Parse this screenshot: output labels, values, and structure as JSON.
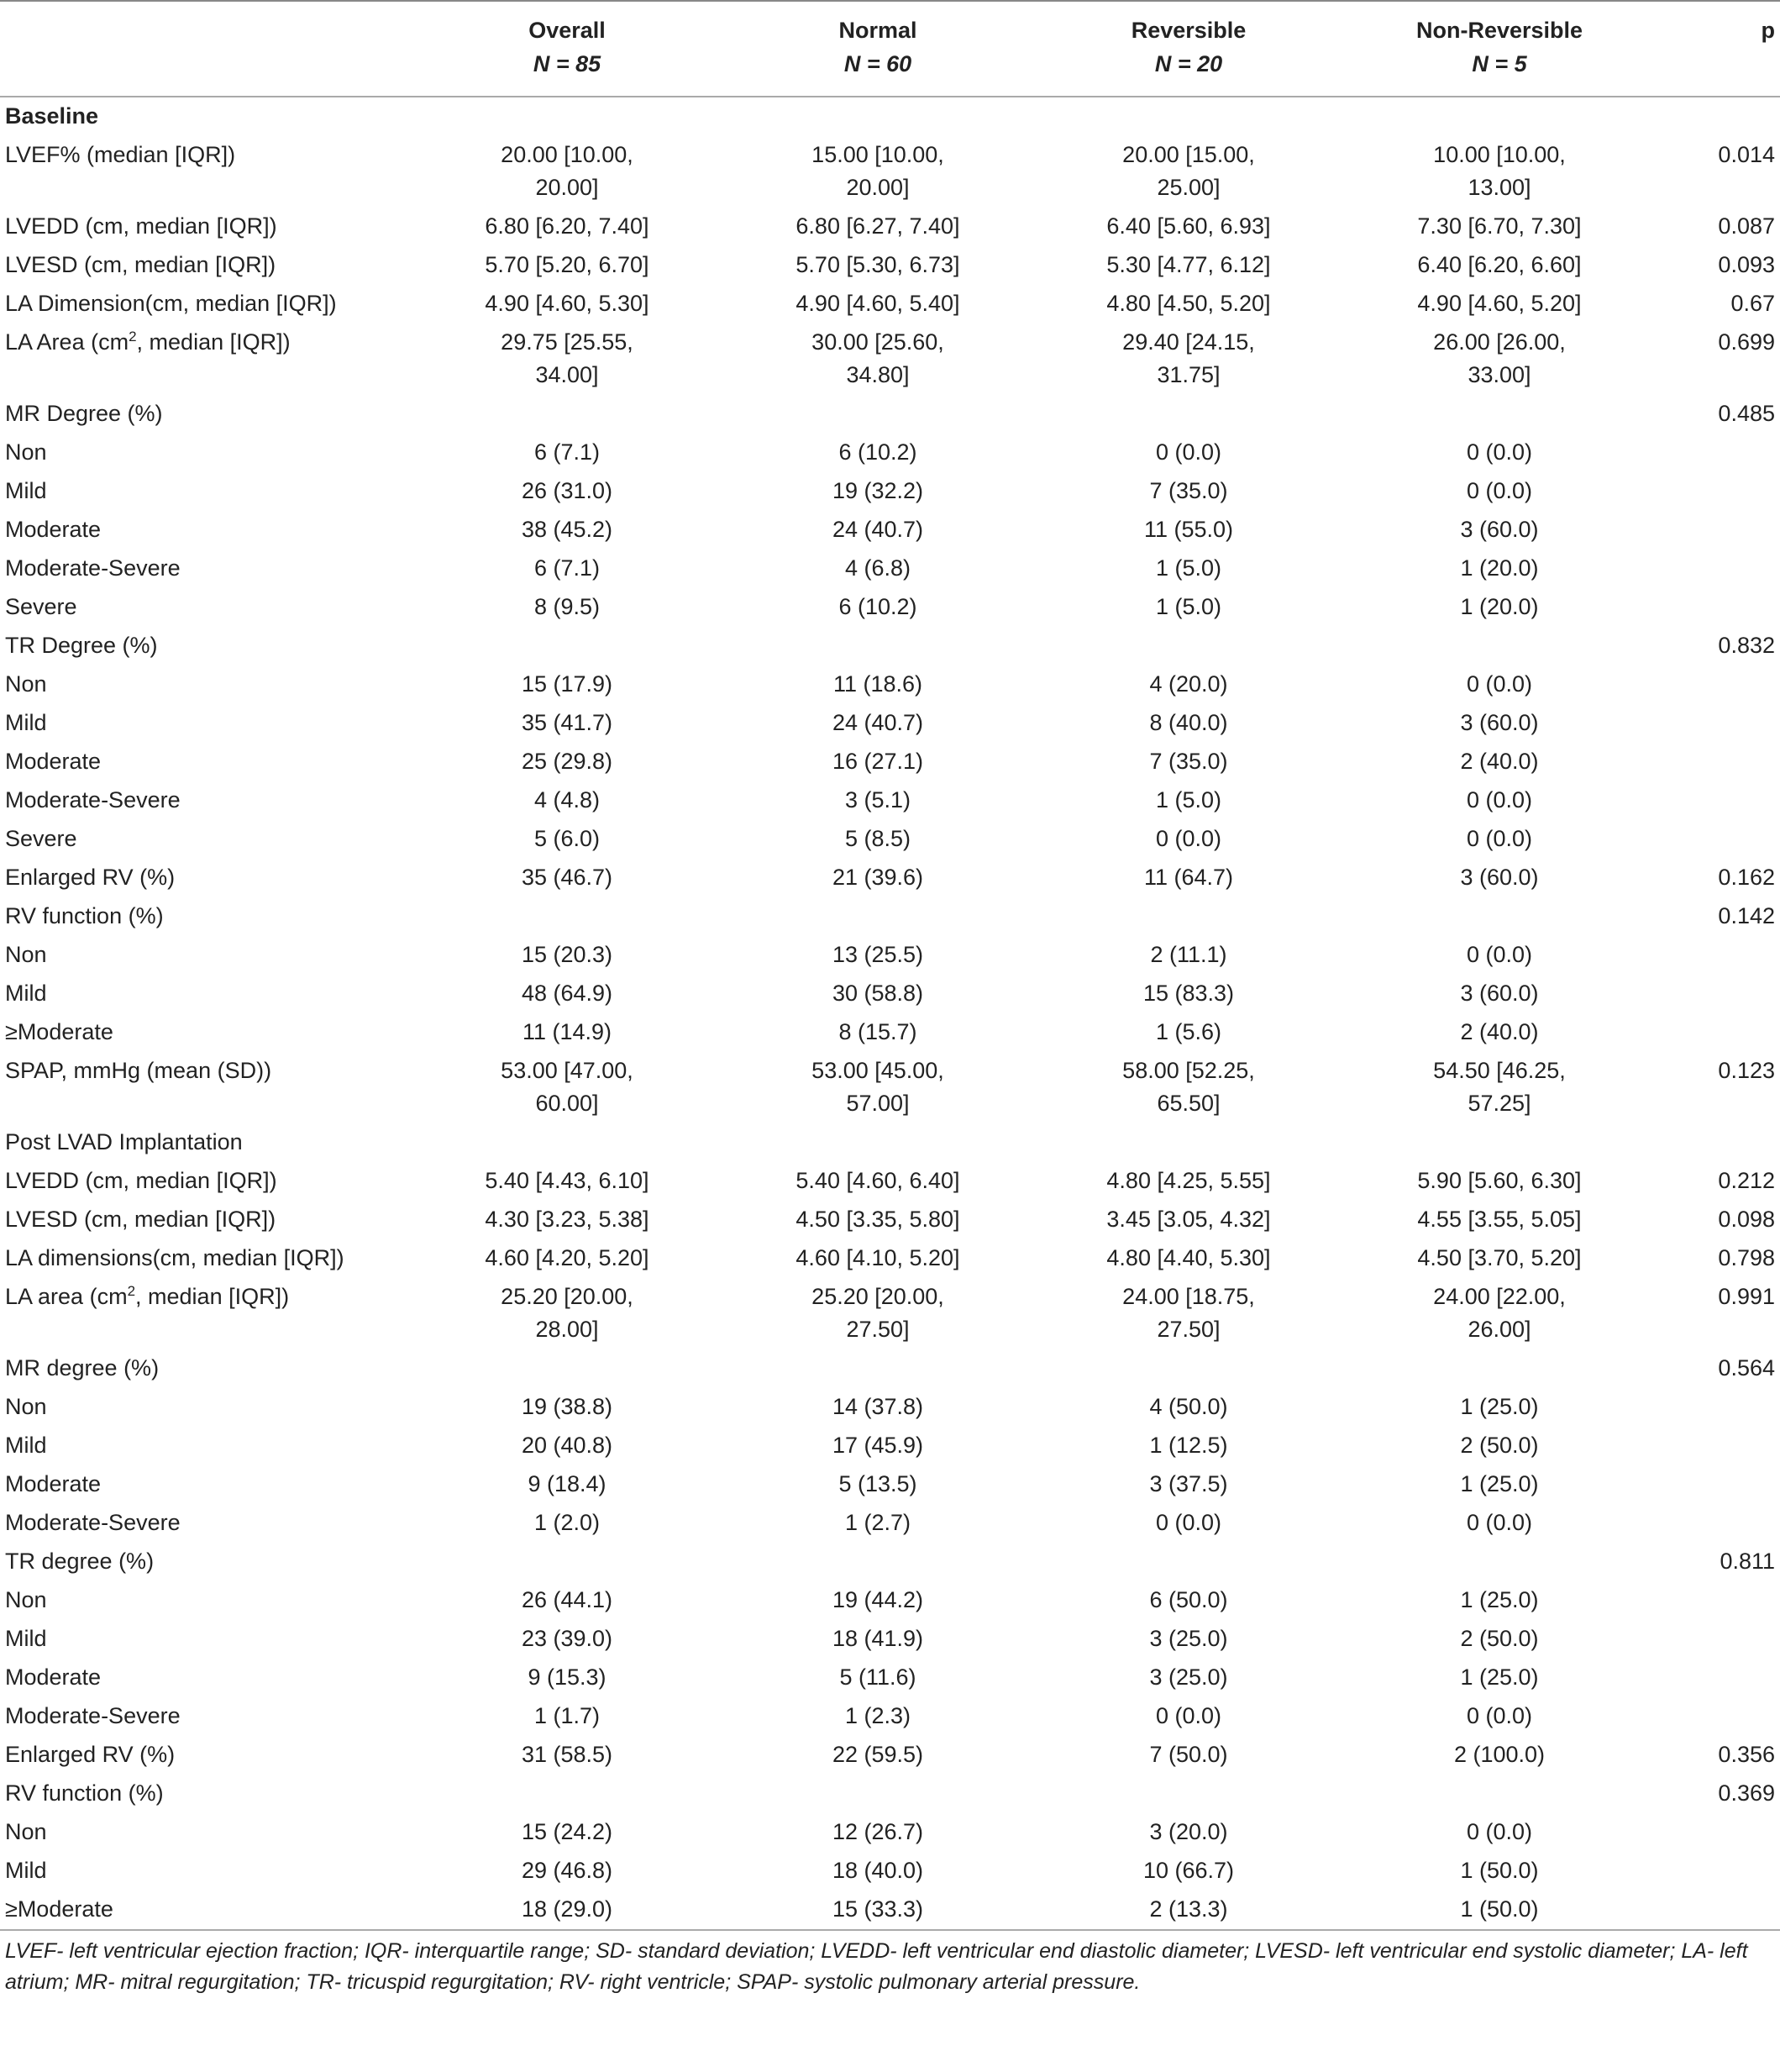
{
  "header": [
    {
      "name": "Overall",
      "n": "N = 85"
    },
    {
      "name": "Normal",
      "n": "N = 60"
    },
    {
      "name": "Reversible",
      "n": "N = 20"
    },
    {
      "name": "Non-Reversible",
      "n": "N = 5"
    }
  ],
  "p_header": "p",
  "rows": [
    {
      "label": "Baseline",
      "bold": true
    },
    {
      "label": "LVEF% (median [IQR])",
      "values": [
        "20.00 [10.00, 20.00]",
        "15.00 [10.00, 20.00]",
        "20.00 [15.00, 25.00]",
        "10.00 [10.00, 13.00]"
      ],
      "p": "0.014"
    },
    {
      "label": "LVEDD (cm, median [IQR])",
      "values": [
        "6.80 [6.20, 7.40]",
        "6.80 [6.27, 7.40]",
        "6.40 [5.60, 6.93]",
        "7.30 [6.70, 7.30]"
      ],
      "p": "0.087"
    },
    {
      "label": "LVESD (cm, median [IQR])",
      "values": [
        "5.70 [5.20, 6.70]",
        "5.70 [5.30, 6.73]",
        "5.30 [4.77, 6.12]",
        "6.40 [6.20, 6.60]"
      ],
      "p": "0.093"
    },
    {
      "label": "LA Dimension(cm, median [IQR])",
      "values": [
        "4.90 [4.60, 5.30]",
        "4.90 [4.60, 5.40]",
        "4.80 [4.50, 5.20]",
        "4.90 [4.60, 5.20]"
      ],
      "p": "0.67"
    },
    {
      "label": "LA Area (cm",
      "label_sup": "2",
      "label_after": ", median [IQR])",
      "values": [
        "29.75 [25.55, 34.00]",
        "30.00 [25.60, 34.80]",
        "29.40 [24.15, 31.75]",
        "26.00 [26.00, 33.00]"
      ],
      "p": "0.699"
    },
    {
      "label": "MR Degree (%)",
      "p": "0.485"
    },
    {
      "label": "Non",
      "values": [
        "6 (7.1)",
        "6 (10.2)",
        "0 (0.0)",
        "0 (0.0)"
      ]
    },
    {
      "label": "Mild",
      "values": [
        "26 (31.0)",
        "19 (32.2)",
        "7 (35.0)",
        "0 (0.0)"
      ]
    },
    {
      "label": "Moderate",
      "values": [
        "38 (45.2)",
        "24 (40.7)",
        "11 (55.0)",
        "3 (60.0)"
      ]
    },
    {
      "label": "Moderate-Severe",
      "values": [
        "6 (7.1)",
        "4 (6.8)",
        "1 (5.0)",
        "1 (20.0)"
      ]
    },
    {
      "label": "Severe",
      "values": [
        "8 (9.5)",
        "6 (10.2)",
        "1 (5.0)",
        "1 (20.0)"
      ]
    },
    {
      "label": "TR Degree (%)",
      "p": "0.832"
    },
    {
      "label": "Non",
      "values": [
        "15 (17.9)",
        "11 (18.6)",
        "4 (20.0)",
        "0 (0.0)"
      ]
    },
    {
      "label": "Mild",
      "values": [
        "35 (41.7)",
        "24 (40.7)",
        "8 (40.0)",
        "3 (60.0)"
      ]
    },
    {
      "label": "Moderate",
      "values": [
        "25 (29.8)",
        "16 (27.1)",
        "7 (35.0)",
        "2 (40.0)"
      ]
    },
    {
      "label": "Moderate-Severe",
      "values": [
        "4 (4.8)",
        "3 (5.1)",
        "1 (5.0)",
        "0 (0.0)"
      ]
    },
    {
      "label": "Severe",
      "values": [
        "5 (6.0)",
        "5 (8.5)",
        "0 (0.0)",
        "0 (0.0)"
      ]
    },
    {
      "label": "Enlarged RV (%)",
      "values": [
        "35 (46.7)",
        "21 (39.6)",
        "11 (64.7)",
        "3 (60.0)"
      ],
      "p": "0.162"
    },
    {
      "label": "RV function (%)",
      "p": "0.142"
    },
    {
      "label": "Non",
      "values": [
        "15 (20.3)",
        "13 (25.5)",
        "2 (11.1)",
        "0 (0.0)"
      ]
    },
    {
      "label": "Mild",
      "values": [
        "48 (64.9)",
        "30 (58.8)",
        "15 (83.3)",
        "3 (60.0)"
      ]
    },
    {
      "label": "≥Moderate",
      "values": [
        "11 (14.9)",
        "8 (15.7)",
        "1 (5.6)",
        "2 (40.0)"
      ]
    },
    {
      "label": "SPAP, mmHg (mean (SD))",
      "values": [
        "53.00 [47.00, 60.00]",
        "53.00 [45.00, 57.00]",
        "58.00 [52.25, 65.50]",
        "54.50 [46.25, 57.25]"
      ],
      "p": "0.123"
    },
    {
      "label": "Post LVAD Implantation"
    },
    {
      "label": "LVEDD (cm, median [IQR])",
      "values": [
        "5.40 [4.43, 6.10]",
        "5.40 [4.60, 6.40]",
        "4.80 [4.25, 5.55]",
        "5.90 [5.60, 6.30]"
      ],
      "p": "0.212"
    },
    {
      "label": "LVESD (cm, median [IQR])",
      "values": [
        "4.30 [3.23, 5.38]",
        "4.50 [3.35, 5.80]",
        "3.45 [3.05, 4.32]",
        "4.55 [3.55, 5.05]"
      ],
      "p": "0.098"
    },
    {
      "label": "LA dimensions(cm, median [IQR])",
      "values": [
        "4.60 [4.20, 5.20]",
        "4.60 [4.10, 5.20]",
        "4.80 [4.40, 5.30]",
        "4.50 [3.70, 5.20]"
      ],
      "p": "0.798"
    },
    {
      "label": "LA area (cm",
      "label_sup": "2",
      "label_after": ", median [IQR])",
      "values": [
        "25.20 [20.00, 28.00]",
        "25.20 [20.00, 27.50]",
        "24.00 [18.75, 27.50]",
        "24.00 [22.00, 26.00]"
      ],
      "p": "0.991"
    },
    {
      "label": "MR degree (%)",
      "p": "0.564"
    },
    {
      "label": "Non",
      "values": [
        "19 (38.8)",
        "14 (37.8)",
        "4 (50.0)",
        "1 (25.0)"
      ]
    },
    {
      "label": "Mild",
      "values": [
        "20 (40.8)",
        "17 (45.9)",
        "1 (12.5)",
        "2 (50.0)"
      ]
    },
    {
      "label": "Moderate",
      "values": [
        "9 (18.4)",
        "5 (13.5)",
        "3 (37.5)",
        "1 (25.0)"
      ]
    },
    {
      "label": "Moderate-Severe",
      "values": [
        "1 (2.0)",
        "1 (2.7)",
        "0 (0.0)",
        "0 (0.0)"
      ]
    },
    {
      "label": "TR degree (%)",
      "p": "0.811"
    },
    {
      "label": "Non",
      "values": [
        "26 (44.1)",
        "19 (44.2)",
        "6 (50.0)",
        "1 (25.0)"
      ]
    },
    {
      "label": "Mild",
      "values": [
        "23 (39.0)",
        "18 (41.9)",
        "3 (25.0)",
        "2 (50.0)"
      ]
    },
    {
      "label": "Moderate",
      "values": [
        "9 (15.3)",
        "5 (11.6)",
        "3 (25.0)",
        "1 (25.0)"
      ]
    },
    {
      "label": "Moderate-Severe",
      "values": [
        "1 (1.7)",
        "1 (2.3)",
        "0 (0.0)",
        "0 (0.0)"
      ]
    },
    {
      "label": "Enlarged RV (%)",
      "values": [
        "31 (58.5)",
        "22 (59.5)",
        "7 (50.0)",
        "2 (100.0)"
      ],
      "p": "0.356"
    },
    {
      "label": "RV function (%)",
      "p": "0.369"
    },
    {
      "label": "Non",
      "values": [
        "15 (24.2)",
        "12 (26.7)",
        "3 (20.0)",
        "0 (0.0)"
      ]
    },
    {
      "label": "Mild",
      "values": [
        "29 (46.8)",
        "18 (40.0)",
        "10 (66.7)",
        "1 (50.0)"
      ]
    },
    {
      "label": "≥Moderate",
      "values": [
        "18 (29.0)",
        "15 (33.3)",
        "2 (13.3)",
        "1 (50.0)"
      ]
    }
  ],
  "footnote": "LVEF- left ventricular ejection fraction; IQR- interquartile range; SD- standard deviation; LVEDD- left ventricular end diastolic diameter; LVESD- left ventricular end systolic diameter; LA- left atrium; MR- mitral regurgitation; TR- tricuspid regurgitation; RV- right ventricle; SPAP- systolic pulmonary arterial pressure."
}
